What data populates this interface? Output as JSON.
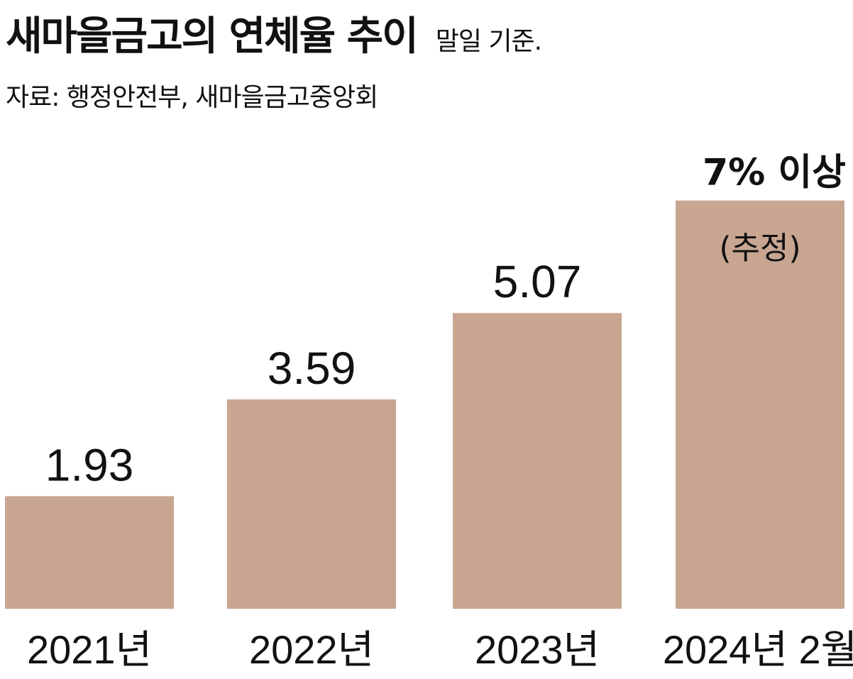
{
  "header": {
    "title": "새마을금고의 연체율 추이",
    "subtitle": "말일 기준.",
    "source": "자료: 행정안전부, 새마을금고중앙회"
  },
  "chart_data": {
    "type": "bar",
    "categories": [
      "2021년",
      "2022년",
      "2023년",
      "2024년 2월"
    ],
    "values": [
      1.93,
      3.59,
      5.07,
      7
    ],
    "value_labels": [
      "1.93",
      "3.59",
      "5.07",
      ""
    ],
    "last_label": "7% 이상",
    "last_note": "(추정)",
    "bar_color": "#c8a692",
    "grid": false,
    "legend": "none"
  }
}
